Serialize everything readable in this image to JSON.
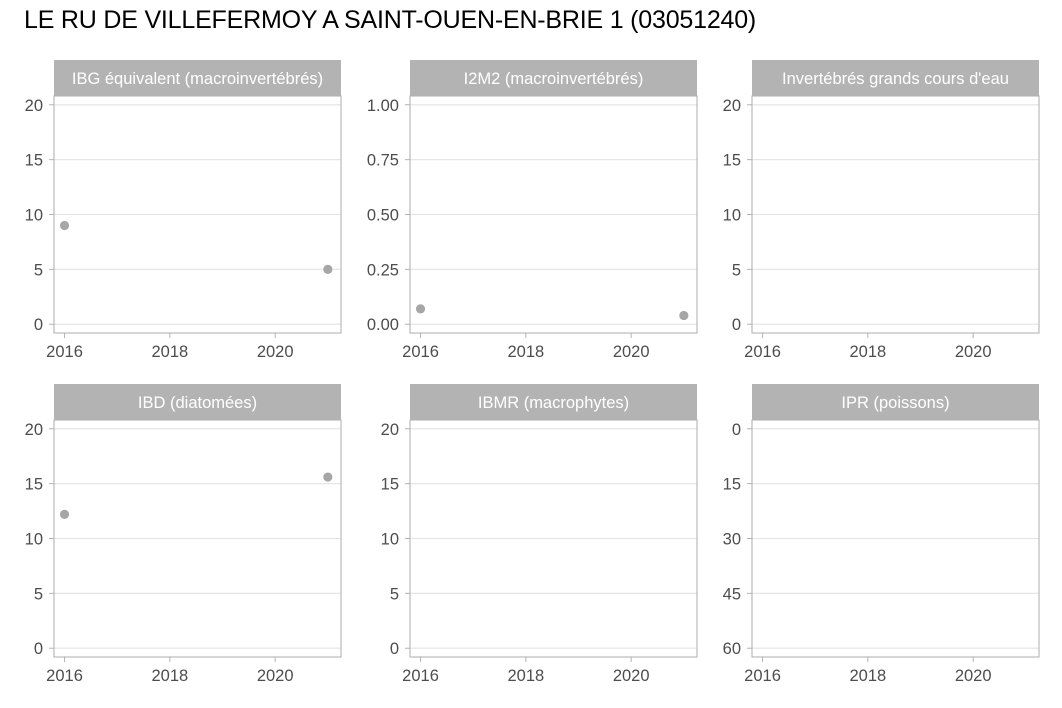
{
  "page": {
    "title": "LE RU DE VILLEFERMOY A SAINT-OUEN-EN-BRIE 1 (03051240)"
  },
  "colors": {
    "strip_bg": "#b3b3b3",
    "strip_text": "#ffffff",
    "panel_border": "#b3b3b3",
    "grid": "#e3e3e3",
    "point": "#a6a6a6",
    "tick_text": "#4d4d4d"
  },
  "chart_data": [
    {
      "type": "scatter",
      "title": "IBG équivalent (macroinvertébrés)",
      "xlim": [
        2015.8,
        2021.25
      ],
      "xticks": [
        2016,
        2018,
        2020
      ],
      "ylim": [
        -0.8,
        20.8
      ],
      "yticks": [
        0,
        5,
        10,
        15,
        20
      ],
      "ytick_labels": [
        "0",
        "5",
        "10",
        "15",
        "20"
      ],
      "y_reversed": false,
      "points": [
        {
          "x": 2016,
          "y": 9.0
        },
        {
          "x": 2021,
          "y": 5.0
        }
      ]
    },
    {
      "type": "scatter",
      "title": "I2M2 (macroinvertébrés)",
      "xlim": [
        2015.8,
        2021.25
      ],
      "xticks": [
        2016,
        2018,
        2020
      ],
      "ylim": [
        -0.04,
        1.04
      ],
      "yticks": [
        0,
        0.25,
        0.5,
        0.75,
        1.0
      ],
      "ytick_labels": [
        "0.00",
        "0.25",
        "0.50",
        "0.75",
        "1.00"
      ],
      "y_reversed": false,
      "points": [
        {
          "x": 2016,
          "y": 0.07
        },
        {
          "x": 2021,
          "y": 0.04
        }
      ]
    },
    {
      "type": "scatter",
      "title": "Invertébrés grands cours d'eau",
      "xlim": [
        2015.8,
        2021.25
      ],
      "xticks": [
        2016,
        2018,
        2020
      ],
      "ylim": [
        -0.8,
        20.8
      ],
      "yticks": [
        0,
        5,
        10,
        15,
        20
      ],
      "ytick_labels": [
        "0",
        "5",
        "10",
        "15",
        "20"
      ],
      "y_reversed": false,
      "points": []
    },
    {
      "type": "scatter",
      "title": "IBD (diatomées)",
      "xlim": [
        2015.8,
        2021.25
      ],
      "xticks": [
        2016,
        2018,
        2020
      ],
      "ylim": [
        -0.8,
        20.8
      ],
      "yticks": [
        0,
        5,
        10,
        15,
        20
      ],
      "ytick_labels": [
        "0",
        "5",
        "10",
        "15",
        "20"
      ],
      "y_reversed": false,
      "points": [
        {
          "x": 2016,
          "y": 12.2
        },
        {
          "x": 2021,
          "y": 15.6
        }
      ]
    },
    {
      "type": "scatter",
      "title": "IBMR (macrophytes)",
      "xlim": [
        2015.8,
        2021.25
      ],
      "xticks": [
        2016,
        2018,
        2020
      ],
      "ylim": [
        -0.8,
        20.8
      ],
      "yticks": [
        0,
        5,
        10,
        15,
        20
      ],
      "ytick_labels": [
        "0",
        "5",
        "10",
        "15",
        "20"
      ],
      "y_reversed": false,
      "points": []
    },
    {
      "type": "scatter",
      "title": "IPR (poissons)",
      "xlim": [
        2015.8,
        2021.25
      ],
      "xticks": [
        2016,
        2018,
        2020
      ],
      "ylim": [
        -2.4,
        62.4
      ],
      "yticks": [
        0,
        15,
        30,
        45,
        60
      ],
      "ytick_labels": [
        "0",
        "15",
        "30",
        "45",
        "60"
      ],
      "y_reversed": true,
      "points": []
    }
  ]
}
